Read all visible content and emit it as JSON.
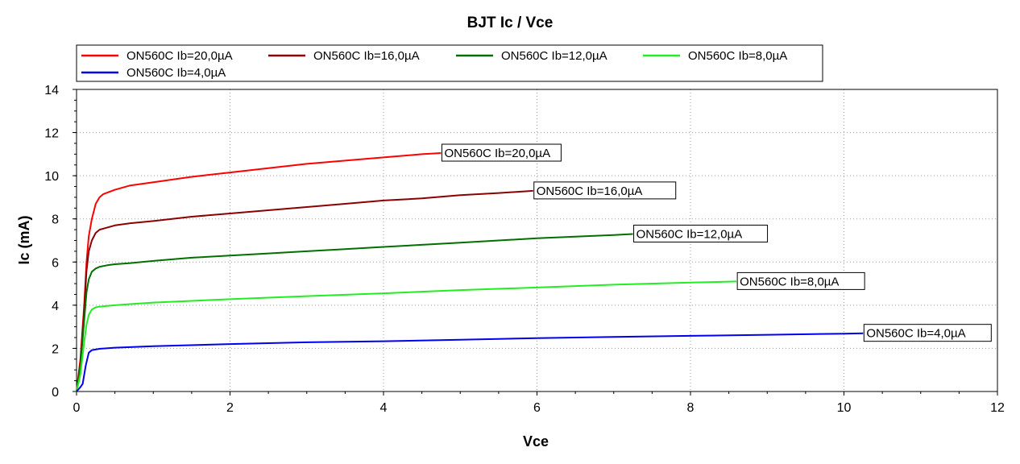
{
  "chart_data": {
    "type": "line",
    "title": "BJT Ic / Vce",
    "xlabel": "Vce",
    "ylabel": "Ic (mA)",
    "xlim": [
      0,
      12
    ],
    "ylim": [
      0,
      14
    ],
    "xticks": [
      0,
      2,
      4,
      6,
      8,
      10,
      12
    ],
    "yticks": [
      0,
      2,
      4,
      6,
      8,
      10,
      12,
      14
    ],
    "grid": true,
    "legend_position": "top",
    "series": [
      {
        "name": "ON560C Ib=20,0µA",
        "color": "#ff0000",
        "x": [
          0,
          0.05,
          0.1,
          0.13,
          0.16,
          0.2,
          0.25,
          0.3,
          0.35,
          0.5,
          0.7,
          1.0,
          1.5,
          2.0,
          2.5,
          3.0,
          3.5,
          4.0,
          4.5,
          4.75
        ],
        "y": [
          0,
          1.5,
          4.0,
          6.0,
          7.2,
          8.0,
          8.7,
          9.0,
          9.15,
          9.35,
          9.55,
          9.7,
          9.95,
          10.15,
          10.35,
          10.55,
          10.7,
          10.85,
          11.0,
          11.05
        ]
      },
      {
        "name": "ON560C Ib=16,0µA",
        "color": "#8b0000",
        "x": [
          0,
          0.05,
          0.1,
          0.13,
          0.16,
          0.2,
          0.25,
          0.3,
          0.35,
          0.5,
          0.7,
          1.0,
          1.5,
          2.0,
          2.5,
          3.0,
          3.5,
          4.0,
          4.5,
          5.0,
          5.5,
          5.95
        ],
        "y": [
          0,
          1.3,
          3.8,
          5.6,
          6.5,
          7.0,
          7.35,
          7.5,
          7.55,
          7.7,
          7.8,
          7.9,
          8.1,
          8.25,
          8.4,
          8.55,
          8.7,
          8.85,
          8.95,
          9.1,
          9.2,
          9.3
        ]
      },
      {
        "name": "ON560C Ib=12,0µA",
        "color": "#007000",
        "x": [
          0,
          0.05,
          0.1,
          0.13,
          0.16,
          0.2,
          0.25,
          0.3,
          0.4,
          0.5,
          0.7,
          1.0,
          1.5,
          2.0,
          2.5,
          3.0,
          3.5,
          4.0,
          4.5,
          5.0,
          5.5,
          6.0,
          6.5,
          7.0,
          7.25
        ],
        "y": [
          0,
          1.2,
          3.3,
          4.6,
          5.2,
          5.55,
          5.7,
          5.78,
          5.85,
          5.9,
          5.95,
          6.05,
          6.2,
          6.3,
          6.4,
          6.5,
          6.6,
          6.7,
          6.8,
          6.9,
          7.0,
          7.1,
          7.18,
          7.25,
          7.3
        ]
      },
      {
        "name": "ON560C Ib=8,0µA",
        "color": "#22ee22",
        "x": [
          0,
          0.05,
          0.1,
          0.13,
          0.16,
          0.2,
          0.25,
          0.3,
          0.4,
          0.5,
          0.7,
          1.0,
          1.5,
          2.0,
          3.0,
          4.0,
          5.0,
          6.0,
          7.0,
          8.0,
          8.6
        ],
        "y": [
          0,
          0.8,
          2.3,
          3.1,
          3.55,
          3.8,
          3.9,
          3.93,
          3.97,
          4.0,
          4.05,
          4.12,
          4.2,
          4.28,
          4.42,
          4.55,
          4.7,
          4.82,
          4.95,
          5.05,
          5.1
        ]
      },
      {
        "name": "ON560C Ib=4,0µA",
        "color": "#0000ee",
        "x": [
          0,
          0.05,
          0.08,
          0.12,
          0.16,
          0.2,
          0.3,
          0.5,
          1.0,
          2.0,
          3.0,
          4.0,
          5.0,
          6.0,
          7.0,
          8.0,
          9.0,
          10.0,
          10.25
        ],
        "y": [
          0,
          0.2,
          0.35,
          1.2,
          1.8,
          1.92,
          1.98,
          2.03,
          2.1,
          2.2,
          2.28,
          2.33,
          2.4,
          2.47,
          2.53,
          2.58,
          2.63,
          2.68,
          2.7
        ]
      }
    ]
  }
}
